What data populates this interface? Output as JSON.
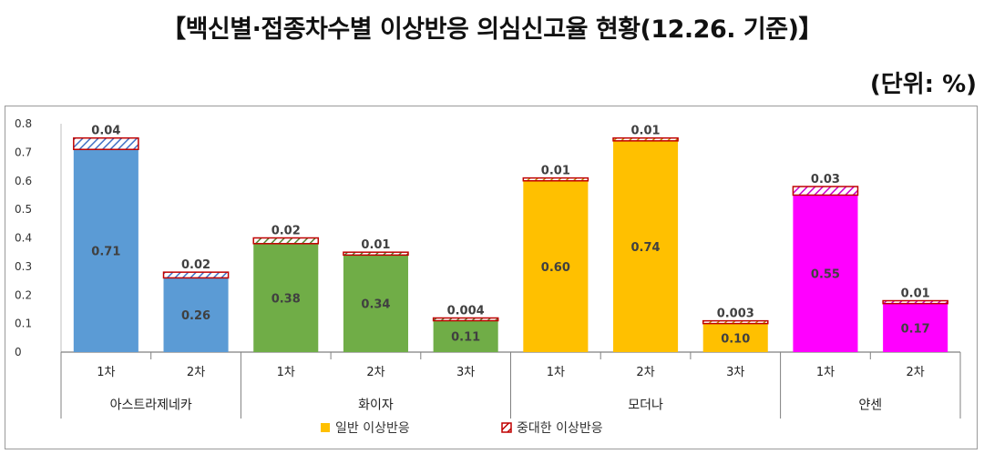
{
  "title": "【백신별·접종차수별 이상반응 의심신고율 현황(12.26. 기준)】",
  "unit": "(단위: %)",
  "chart_data": {
    "type": "bar",
    "stacked": true,
    "ylim": [
      0,
      0.8
    ],
    "yticks": [
      "0",
      "0.1",
      "0.2",
      "0.3",
      "0.4",
      "0.5",
      "0.6",
      "0.7",
      "0.8"
    ],
    "grid": false,
    "legend_position": "bottom",
    "groups": [
      {
        "name": "아스트라제네카",
        "color": "#5b9bd5",
        "bars": [
          {
            "dose": "1차",
            "general": 0.71,
            "general_label": "0.71",
            "serious": 0.04,
            "serious_label": "0.04"
          },
          {
            "dose": "2차",
            "general": 0.26,
            "general_label": "0.26",
            "serious": 0.02,
            "serious_label": "0.02"
          }
        ]
      },
      {
        "name": "화이자",
        "color": "#70ad47",
        "bars": [
          {
            "dose": "1차",
            "general": 0.38,
            "general_label": "0.38",
            "serious": 0.02,
            "serious_label": "0.02"
          },
          {
            "dose": "2차",
            "general": 0.34,
            "general_label": "0.34",
            "serious": 0.01,
            "serious_label": "0.01"
          },
          {
            "dose": "3차",
            "general": 0.11,
            "general_label": "0.11",
            "serious": 0.004,
            "serious_label": "0.004"
          }
        ]
      },
      {
        "name": "모더나",
        "color": "#ffc000",
        "bars": [
          {
            "dose": "1차",
            "general": 0.6,
            "general_label": "0.60",
            "serious": 0.01,
            "serious_label": "0.01"
          },
          {
            "dose": "2차",
            "general": 0.74,
            "general_label": "0.74",
            "serious": 0.01,
            "serious_label": "0.01"
          },
          {
            "dose": "3차",
            "general": 0.1,
            "general_label": "0.10",
            "serious": 0.003,
            "serious_label": "0.003"
          }
        ]
      },
      {
        "name": "얀센",
        "color": "#ff00ff",
        "bars": [
          {
            "dose": "1차",
            "general": 0.55,
            "general_label": "0.55",
            "serious": 0.03,
            "serious_label": "0.03"
          },
          {
            "dose": "2차",
            "general": 0.17,
            "general_label": "0.17",
            "serious": 0.01,
            "serious_label": "0.01"
          }
        ]
      }
    ],
    "legend": [
      {
        "name": "일반 이상반응",
        "color": "#ffc000"
      },
      {
        "name": "중대한 이상반응",
        "color": "#c00000"
      }
    ]
  }
}
